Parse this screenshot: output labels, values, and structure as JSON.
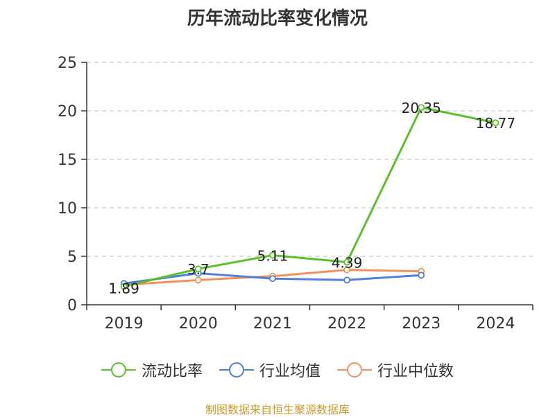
{
  "title": "历年流动比率变化情况",
  "source": "制图数据来自恒生聚源数据库",
  "chart_data": {
    "type": "line",
    "categories": [
      "2019",
      "2020",
      "2021",
      "2022",
      "2023",
      "2024"
    ],
    "ylim": [
      0,
      25
    ],
    "yticks": [
      "0",
      "5",
      "10",
      "15",
      "20",
      "25"
    ],
    "grid": true,
    "legend_position": "bottom",
    "series": [
      {
        "name": "流动比率",
        "color": "#5cbf2a",
        "values": [
          1.89,
          3.7,
          5.11,
          4.39,
          20.35,
          18.77
        ],
        "labels": [
          "1.89",
          "3.7",
          "5.11",
          "4.39",
          "20.35",
          "18.77"
        ]
      },
      {
        "name": "行业均值",
        "color": "#4d7fdc",
        "values": [
          2.2,
          3.25,
          2.7,
          2.55,
          3.05,
          null
        ]
      },
      {
        "name": "行业中位数",
        "color": "#f4915b",
        "values": [
          2.05,
          2.55,
          2.95,
          3.6,
          3.45,
          null
        ]
      }
    ]
  }
}
